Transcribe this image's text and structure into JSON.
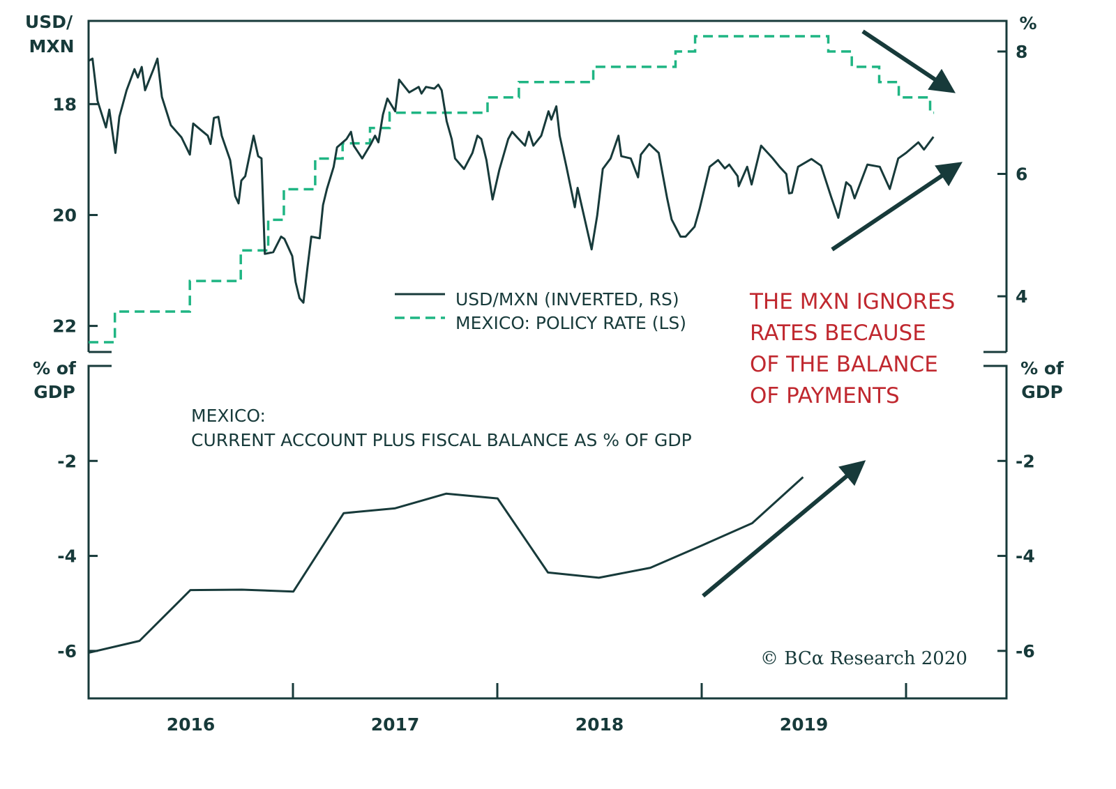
{
  "colors": {
    "dark": "#173a3a",
    "green": "#1fb583",
    "red": "#c0282f"
  },
  "chart_data": [
    {
      "type": "line",
      "panel": "top",
      "left_axis": {
        "label_line1": "USD/",
        "label_line2": "MXN",
        "ticks": [
          18,
          20,
          22
        ],
        "ylim": [
          16.5,
          22.47
        ],
        "inverted": true
      },
      "right_axis": {
        "label": "%",
        "ticks": [
          8,
          6,
          4
        ],
        "ylim": [
          3.09,
          8.5
        ]
      },
      "legend": {
        "placement": "bottom-center"
      },
      "annotation": [
        "THE MXN IGNORES",
        "RATES BECAUSE",
        "OF THE BALANCE",
        "OF PAYMENTS"
      ],
      "series": [
        {
          "name": "USD/MXN (INVERTED, RS)",
          "style": "solid",
          "axis": "left",
          "points": [
            [
              "2016-01-01",
              17.22
            ],
            [
              "2016-01-08",
              17.18
            ],
            [
              "2016-01-17",
              17.94
            ],
            [
              "2016-02-01",
              18.42
            ],
            [
              "2016-02-07",
              18.1
            ],
            [
              "2016-02-18",
              18.88
            ],
            [
              "2016-02-25",
              18.23
            ],
            [
              "2016-03-09",
              17.75
            ],
            [
              "2016-03-23",
              17.37
            ],
            [
              "2016-03-29",
              17.52
            ],
            [
              "2016-04-05",
              17.33
            ],
            [
              "2016-04-11",
              17.75
            ],
            [
              "2016-04-26",
              17.37
            ],
            [
              "2016-05-03",
              17.18
            ],
            [
              "2016-05-11",
              17.87
            ],
            [
              "2016-05-27",
              18.38
            ],
            [
              "2016-06-15",
              18.6
            ],
            [
              "2016-06-30",
              18.91
            ],
            [
              "2016-07-06",
              18.35
            ],
            [
              "2016-07-20",
              18.47
            ],
            [
              "2016-08-01",
              18.57
            ],
            [
              "2016-08-06",
              18.72
            ],
            [
              "2016-08-12",
              18.25
            ],
            [
              "2016-08-20",
              18.23
            ],
            [
              "2016-08-26",
              18.57
            ],
            [
              "2016-09-10",
              19.01
            ],
            [
              "2016-09-19",
              19.66
            ],
            [
              "2016-09-25",
              19.79
            ],
            [
              "2016-09-30",
              19.38
            ],
            [
              "2016-10-07",
              19.3
            ],
            [
              "2016-10-22",
              18.57
            ],
            [
              "2016-10-30",
              18.94
            ],
            [
              "2016-11-05",
              18.98
            ],
            [
              "2016-11-11",
              20.7
            ],
            [
              "2016-11-26",
              20.67
            ],
            [
              "2016-12-10",
              20.39
            ],
            [
              "2016-12-16",
              20.43
            ],
            [
              "2016-12-30",
              20.74
            ],
            [
              "2017-01-05",
              21.21
            ],
            [
              "2017-01-12",
              21.5
            ],
            [
              "2017-01-19",
              21.58
            ],
            [
              "2017-01-26",
              20.96
            ],
            [
              "2017-02-02",
              20.39
            ],
            [
              "2017-02-17",
              20.42
            ],
            [
              "2017-02-23",
              19.82
            ],
            [
              "2017-03-02",
              19.53
            ],
            [
              "2017-03-14",
              19.13
            ],
            [
              "2017-03-20",
              18.78
            ],
            [
              "2017-04-06",
              18.63
            ],
            [
              "2017-04-14",
              18.5
            ],
            [
              "2017-04-19",
              18.75
            ],
            [
              "2017-05-04",
              18.98
            ],
            [
              "2017-05-19",
              18.73
            ],
            [
              "2017-05-27",
              18.57
            ],
            [
              "2017-06-02",
              18.69
            ],
            [
              "2017-06-10",
              18.19
            ],
            [
              "2017-06-18",
              17.9
            ],
            [
              "2017-07-02",
              18.13
            ],
            [
              "2017-07-09",
              17.56
            ],
            [
              "2017-07-27",
              17.79
            ],
            [
              "2017-08-13",
              17.69
            ],
            [
              "2017-08-18",
              17.81
            ],
            [
              "2017-08-26",
              17.69
            ],
            [
              "2017-09-10",
              17.72
            ],
            [
              "2017-09-17",
              17.65
            ],
            [
              "2017-09-23",
              17.75
            ],
            [
              "2017-10-02",
              18.31
            ],
            [
              "2017-10-11",
              18.63
            ],
            [
              "2017-10-17",
              18.98
            ],
            [
              "2017-11-02",
              19.17
            ],
            [
              "2017-11-17",
              18.88
            ],
            [
              "2017-11-26",
              18.57
            ],
            [
              "2017-12-03",
              18.63
            ],
            [
              "2017-12-12",
              19.01
            ],
            [
              "2017-12-23",
              19.72
            ],
            [
              "2018-01-04",
              19.19
            ],
            [
              "2018-01-20",
              18.63
            ],
            [
              "2018-01-27",
              18.5
            ],
            [
              "2018-02-05",
              18.6
            ],
            [
              "2018-02-19",
              18.75
            ],
            [
              "2018-02-26",
              18.5
            ],
            [
              "2018-03-06",
              18.75
            ],
            [
              "2018-03-20",
              18.57
            ],
            [
              "2018-04-02",
              18.13
            ],
            [
              "2018-04-07",
              18.28
            ],
            [
              "2018-04-16",
              18.04
            ],
            [
              "2018-04-22",
              18.57
            ],
            [
              "2018-05-04",
              19.13
            ],
            [
              "2018-05-19",
              19.86
            ],
            [
              "2018-05-24",
              19.51
            ],
            [
              "2018-06-18",
              20.62
            ],
            [
              "2018-06-28",
              20.01
            ],
            [
              "2018-07-08",
              19.17
            ],
            [
              "2018-07-22",
              18.98
            ],
            [
              "2018-08-05",
              18.57
            ],
            [
              "2018-08-10",
              18.94
            ],
            [
              "2018-08-27",
              18.98
            ],
            [
              "2018-09-09",
              19.32
            ],
            [
              "2018-09-14",
              18.91
            ],
            [
              "2018-09-29",
              18.72
            ],
            [
              "2018-10-16",
              18.88
            ],
            [
              "2018-10-31",
              19.7
            ],
            [
              "2018-11-08",
              20.08
            ],
            [
              "2018-11-24",
              20.39
            ],
            [
              "2018-12-03",
              20.39
            ],
            [
              "2018-12-19",
              20.21
            ],
            [
              "2018-12-28",
              19.89
            ],
            [
              "2019-01-15",
              19.13
            ],
            [
              "2019-01-30",
              19.01
            ],
            [
              "2019-02-11",
              19.16
            ],
            [
              "2019-02-19",
              19.09
            ],
            [
              "2019-03-06",
              19.3
            ],
            [
              "2019-03-08",
              19.48
            ],
            [
              "2019-03-23",
              19.13
            ],
            [
              "2019-03-31",
              19.45
            ],
            [
              "2019-04-17",
              18.75
            ],
            [
              "2019-05-07",
              18.97
            ],
            [
              "2019-05-20",
              19.13
            ],
            [
              "2019-06-01",
              19.26
            ],
            [
              "2019-06-06",
              19.61
            ],
            [
              "2019-06-11",
              19.6
            ],
            [
              "2019-06-22",
              19.13
            ],
            [
              "2019-07-16",
              18.99
            ],
            [
              "2019-08-02",
              19.11
            ],
            [
              "2019-08-20",
              19.67
            ],
            [
              "2019-09-02",
              20.05
            ],
            [
              "2019-09-16",
              19.41
            ],
            [
              "2019-09-24",
              19.48
            ],
            [
              "2019-10-01",
              19.7
            ],
            [
              "2019-10-24",
              19.09
            ],
            [
              "2019-11-15",
              19.13
            ],
            [
              "2019-12-03",
              19.53
            ],
            [
              "2019-12-18",
              18.98
            ],
            [
              "2020-01-01",
              18.88
            ],
            [
              "2020-01-23",
              18.69
            ],
            [
              "2020-02-02",
              18.82
            ],
            [
              "2020-02-19",
              18.59
            ]
          ]
        },
        {
          "name": "MEXICO: POLICY RATE (LS)",
          "style": "dashed-step",
          "axis": "right",
          "points": [
            [
              "2016-01-01",
              3.25
            ],
            [
              "2016-02-17",
              3.75
            ],
            [
              "2016-06-30",
              4.25
            ],
            [
              "2016-09-29",
              4.75
            ],
            [
              "2016-11-17",
              5.25
            ],
            [
              "2016-12-15",
              5.75
            ],
            [
              "2017-02-09",
              6.25
            ],
            [
              "2017-03-30",
              6.5
            ],
            [
              "2017-05-18",
              6.75
            ],
            [
              "2017-06-22",
              7.0
            ],
            [
              "2017-12-14",
              7.25
            ],
            [
              "2018-02-08",
              7.5
            ],
            [
              "2018-06-21",
              7.75
            ],
            [
              "2018-11-15",
              8.0
            ],
            [
              "2018-12-20",
              8.25
            ],
            [
              "2019-08-15",
              8.0
            ],
            [
              "2019-09-26",
              7.75
            ],
            [
              "2019-11-14",
              7.5
            ],
            [
              "2019-12-19",
              7.25
            ],
            [
              "2020-02-13",
              7.0
            ],
            [
              "2020-02-20",
              7.0
            ]
          ]
        }
      ]
    },
    {
      "type": "line",
      "panel": "bottom",
      "title_line1": "MEXICO:",
      "title_line2": "CURRENT ACCOUNT PLUS FISCAL BALANCE AS % OF GDP",
      "left_axis": {
        "label_line1": "% of",
        "label_line2": "GDP",
        "ticks": [
          -2,
          -4,
          -6
        ],
        "ylim": [
          -7,
          0
        ]
      },
      "right_axis": {
        "label_line1": "% of",
        "label_line2": "GDP",
        "ticks": [
          -2,
          -4,
          -6
        ],
        "ylim": [
          -7,
          0
        ]
      },
      "series": [
        {
          "points": [
            [
              "2016-01-01",
              -6.04
            ],
            [
              "2016-04-01",
              -5.79
            ],
            [
              "2016-07-01",
              -4.72
            ],
            [
              "2016-10-01",
              -4.71
            ],
            [
              "2017-01-01",
              -4.75
            ],
            [
              "2017-04-01",
              -3.1
            ],
            [
              "2017-07-01",
              -3.0
            ],
            [
              "2017-10-01",
              -2.69
            ],
            [
              "2018-01-01",
              -2.79
            ],
            [
              "2018-04-01",
              -4.35
            ],
            [
              "2018-07-01",
              -4.46
            ],
            [
              "2018-10-01",
              -4.25
            ],
            [
              "2019-01-01",
              -3.78
            ],
            [
              "2019-04-01",
              -3.31
            ],
            [
              "2019-07-01",
              -2.34
            ]
          ]
        }
      ]
    }
  ],
  "x_axis": {
    "tick_labels": [
      "2016",
      "2017",
      "2018",
      "2019"
    ],
    "range": [
      "2016-01-01",
      "2020-07-01"
    ]
  },
  "copyright": "© BCα Research 2020",
  "icons": {
    "trend_arrows": [
      "arrow-down-right-icon",
      "arrow-up-right-icon",
      "arrow-up-right-icon"
    ]
  }
}
